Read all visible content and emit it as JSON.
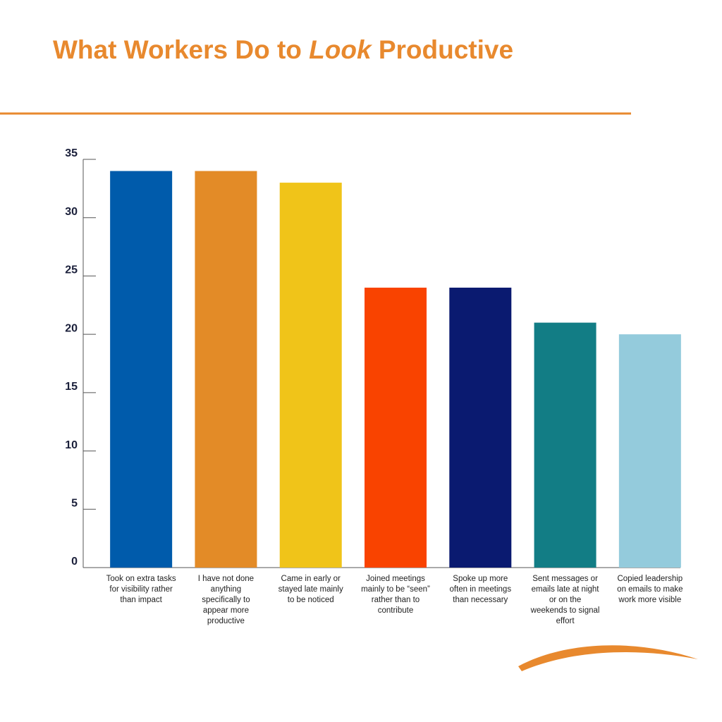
{
  "chart_data": {
    "type": "bar",
    "title": {
      "before": "What Workers Do to ",
      "emphasis": "Look",
      "after": " Productive"
    },
    "categories": [
      "Took on extra tasks for visibility rather than impact",
      "I have not done anything specifically to appear more productive",
      "Came in early or stayed late mainly to be noticed",
      "Joined meetings mainly to be “seen” rather than to contribute",
      "Spoke up more often in meetings than necessary",
      "Sent messages or emails late at night or on the weekends to signal effort",
      "Copied leadership on emails to make work more visible"
    ],
    "values": [
      34,
      34,
      33,
      24,
      24,
      21,
      20
    ],
    "colors": [
      "#005bab",
      "#e38b27",
      "#f0c419",
      "#f94300",
      "#0a1a70",
      "#127d85",
      "#94cbdc"
    ],
    "ylim": [
      0,
      35
    ],
    "yticks": [
      0,
      5,
      10,
      15,
      20,
      25,
      30,
      35
    ],
    "logo": "connext"
  }
}
